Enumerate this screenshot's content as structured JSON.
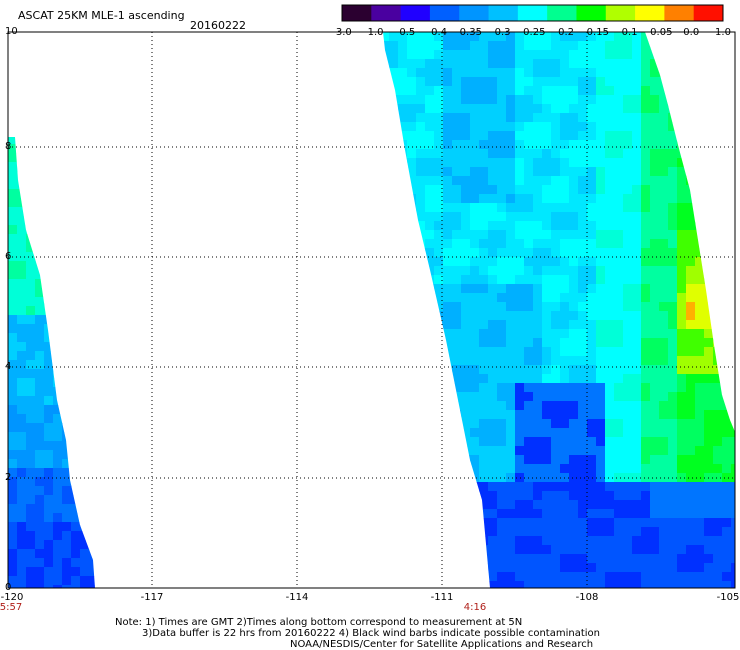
{
  "header": {
    "title": "ASCAT 25KM MLE-1 ascending",
    "date": "20160222"
  },
  "colorbar": {
    "labels": [
      "-3.0",
      "-1.0",
      "-0.5",
      "-0.4",
      "-0.35",
      "-0.3",
      "-0.25",
      "-0.2",
      "-0.15",
      "-0.1",
      "-0.05",
      "0.0",
      "1.0"
    ],
    "colors": [
      "#2b0030",
      "#4a00a0",
      "#2000ff",
      "#0060ff",
      "#0095ff",
      "#00c0ff",
      "#00ffff",
      "#00ff90",
      "#00ff00",
      "#b0ff00",
      "#ffff00",
      "#ff8000",
      "#ff1000"
    ]
  },
  "axes": {
    "x_ticks": [
      "-120",
      "-117",
      "-114",
      "-111",
      "-108",
      "-105"
    ],
    "y_ticks": [
      "0",
      "2",
      "4",
      "6",
      "8",
      "10"
    ]
  },
  "pass_times": {
    "left": "5:57",
    "right": "4:16"
  },
  "notes": {
    "line1": "Note: 1) Times are GMT 2)Times along bottom correspond to measurement at 5N",
    "line2": "3)Data buffer is 22 hrs from 20160222 4) Black wind barbs indicate possible contamination",
    "line3": "NOAA/NESDIS/Center for Satellite Applications and Research"
  }
}
